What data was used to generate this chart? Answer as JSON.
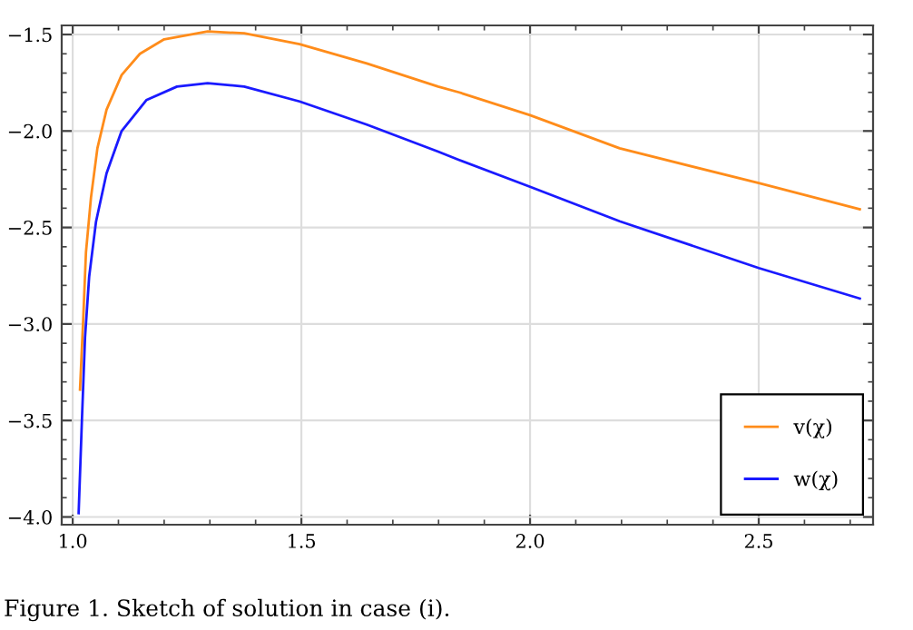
{
  "chart_data": {
    "type": "line",
    "annotations": [
      "Figure 1. Sketch of solution in case (i)."
    ],
    "series": [
      {
        "name": "v(χ)",
        "color": "#ff8c1a",
        "x": [
          1.016,
          1.023,
          1.029,
          1.04,
          1.054,
          1.074,
          1.107,
          1.147,
          1.2,
          1.295,
          1.375,
          1.496,
          1.643,
          1.799,
          1.845,
          2.0,
          2.196,
          2.5,
          2.721
        ],
        "values": [
          -3.34,
          -2.975,
          -2.63,
          -2.345,
          -2.09,
          -1.89,
          -1.71,
          -1.6,
          -1.525,
          -1.484,
          -1.494,
          -1.55,
          -1.65,
          -1.77,
          -1.8,
          -1.918,
          -2.09,
          -2.27,
          -2.406
        ]
      },
      {
        "name": "w(χ)",
        "color": "#1a1aff",
        "x": [
          1.013,
          1.02,
          1.027,
          1.036,
          1.051,
          1.074,
          1.107,
          1.161,
          1.228,
          1.295,
          1.375,
          1.496,
          1.643,
          1.799,
          1.845,
          2.0,
          2.196,
          2.5,
          2.721
        ],
        "values": [
          -3.98,
          -3.51,
          -3.07,
          -2.755,
          -2.47,
          -2.22,
          -2.0,
          -1.84,
          -1.77,
          -1.752,
          -1.77,
          -1.847,
          -1.967,
          -2.107,
          -2.15,
          -2.289,
          -2.468,
          -2.71,
          -2.868
        ]
      }
    ],
    "xlim": [
      0.976,
      2.75
    ],
    "ylim": [
      -4.04,
      -1.453
    ],
    "xticks": [
      {
        "value": 1.0,
        "label": "1.0"
      },
      1.5,
      {
        "value": 2.0,
        "label": "2.0"
      },
      2.5
    ],
    "yticks": [
      {
        "value": -4.0,
        "label": "−4.0"
      },
      {
        "value": -3.5,
        "label": "−3.5"
      },
      {
        "value": -3.0,
        "label": "−3.0"
      },
      {
        "value": -2.5,
        "label": "−2.5"
      },
      {
        "value": -2.0,
        "label": "−2.0"
      },
      {
        "value": -1.5,
        "label": "−1.5"
      }
    ],
    "grid": true,
    "legend": "bottom right",
    "line_style": "solid",
    "marker": "none"
  }
}
